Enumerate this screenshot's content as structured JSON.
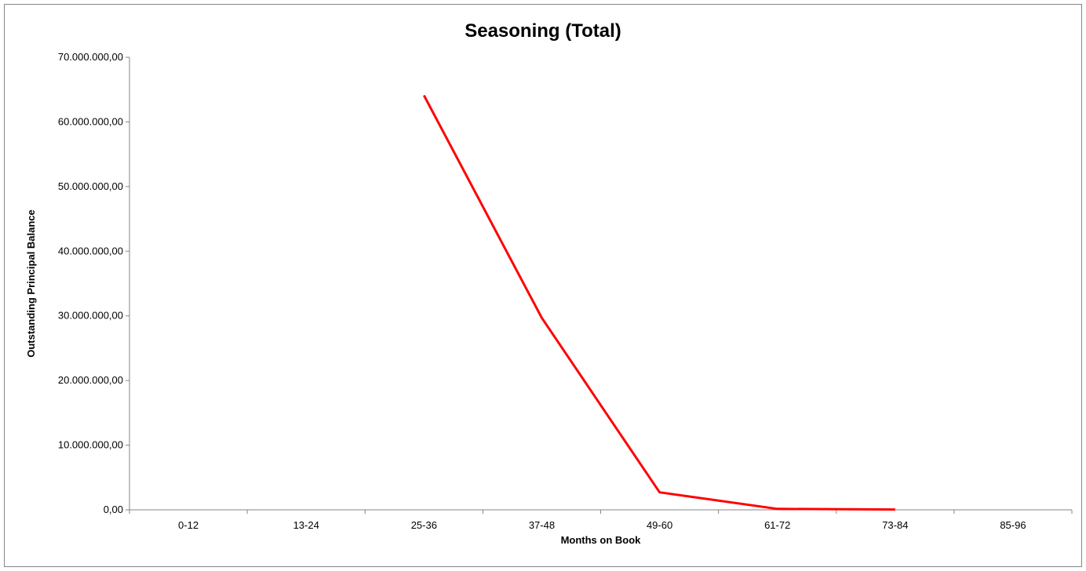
{
  "chart_data": {
    "type": "line",
    "title": "Seasoning (Total)",
    "xlabel": "Months on Book",
    "ylabel": "Outstanding Principal Balance",
    "categories": [
      "0-12",
      "13-24",
      "25-36",
      "37-48",
      "49-60",
      "61-72",
      "73-84",
      "85-96"
    ],
    "series": [
      {
        "color": "#ff0000",
        "values": [
          null,
          null,
          64100000,
          29700000,
          2700000,
          150000,
          50000,
          null
        ]
      }
    ],
    "ylim": [
      0,
      70000000
    ],
    "yticks": [
      0,
      10000000,
      20000000,
      30000000,
      40000000,
      50000000,
      60000000,
      70000000
    ],
    "ytick_labels": [
      "0,00",
      "10.000.000,00",
      "20.000.000,00",
      "30.000.000,00",
      "40.000.000,00",
      "50.000.000,00",
      "60.000.000,00",
      "70.000.000,00"
    ],
    "grid": false,
    "legend": "none"
  }
}
